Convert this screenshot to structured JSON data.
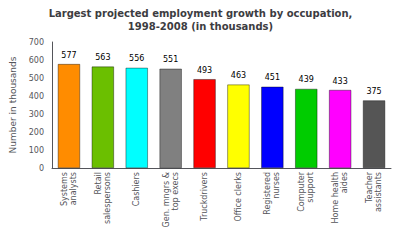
{
  "chart_data": {
    "type": "bar",
    "title": "Largest projected employment growth by occupation,\n1998-2008 (in thousands)",
    "categories": [
      "Systems\nanalysts",
      "Retail\nsalespersons",
      "Cashiers",
      "Gen. mngrs &\ntop execs",
      "Truckdrivers",
      "Office clerks",
      "Registered\nnurses",
      "Computer\nsupport",
      "Home health\naides",
      "Teacher\nassistants"
    ],
    "values": [
      577,
      563,
      556,
      551,
      493,
      463,
      451,
      439,
      433,
      375
    ],
    "colors": [
      "#FF8C00",
      "#6BBF00",
      "#00FFFF",
      "#808080",
      "#FF0000",
      "#FFFF00",
      "#0000FF",
      "#00CC00",
      "#FF00FF",
      "#555555"
    ],
    "ylabel": "Number in thousands",
    "ylim": [
      0,
      700
    ],
    "yticks": [
      0,
      100,
      200,
      300,
      400,
      500,
      600,
      700
    ],
    "data_labels": true,
    "grid": false
  }
}
